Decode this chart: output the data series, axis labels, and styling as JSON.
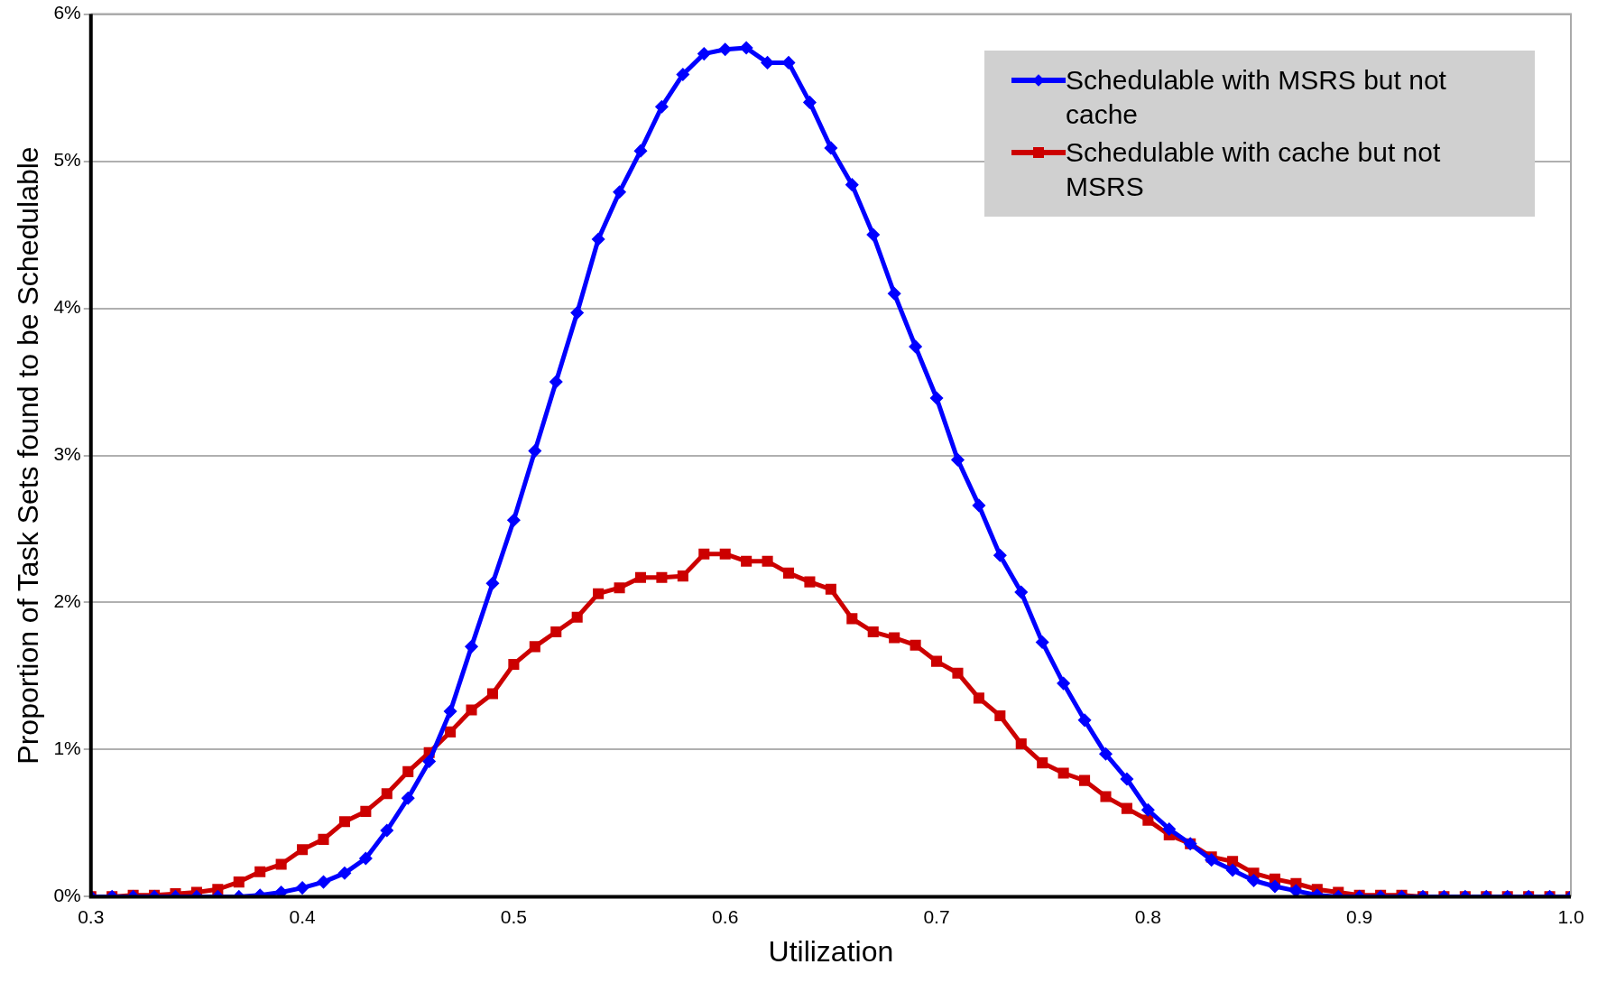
{
  "chart_data": {
    "type": "line",
    "xlabel": "Utilization",
    "ylabel": "Proportion of Task Sets found to be Schedulable",
    "x": [
      0.3,
      0.31,
      0.32,
      0.33,
      0.34,
      0.35,
      0.36,
      0.37,
      0.38,
      0.39,
      0.4,
      0.41,
      0.42,
      0.43,
      0.44,
      0.45,
      0.46,
      0.47,
      0.48,
      0.49,
      0.5,
      0.51,
      0.52,
      0.53,
      0.54,
      0.55,
      0.56,
      0.57,
      0.58,
      0.59,
      0.6,
      0.61,
      0.62,
      0.63,
      0.64,
      0.65,
      0.66,
      0.67,
      0.68,
      0.69,
      0.7,
      0.71,
      0.72,
      0.73,
      0.74,
      0.75,
      0.76,
      0.77,
      0.78,
      0.79,
      0.8,
      0.81,
      0.82,
      0.83,
      0.84,
      0.85,
      0.86,
      0.87,
      0.88,
      0.89,
      0.9,
      0.91,
      0.92,
      0.93,
      0.94,
      0.95,
      0.96,
      0.97,
      0.98,
      0.99,
      1.0
    ],
    "series": [
      {
        "name": "Schedulable with MSRS but not cache",
        "color": "#0000ff",
        "marker": "diamond",
        "values": [
          0,
          0,
          0,
          0,
          0,
          0,
          0,
          0,
          0.01,
          0.03,
          0.06,
          0.1,
          0.16,
          0.26,
          0.45,
          0.67,
          0.92,
          1.26,
          1.7,
          2.13,
          2.56,
          3.03,
          3.5,
          3.97,
          4.47,
          4.79,
          5.07,
          5.37,
          5.59,
          5.73,
          5.76,
          5.77,
          5.67,
          5.67,
          5.4,
          5.09,
          4.84,
          4.5,
          4.1,
          3.74,
          3.39,
          2.97,
          2.66,
          2.32,
          2.07,
          1.73,
          1.45,
          1.2,
          0.97,
          0.8,
          0.59,
          0.46,
          0.36,
          0.25,
          0.18,
          0.11,
          0.07,
          0.04,
          0.01,
          0,
          0,
          0,
          0,
          0,
          0,
          0,
          0,
          0,
          0,
          0,
          0
        ]
      },
      {
        "name": "Schedulable with cache but not MSRS",
        "color": "#cc0000",
        "marker": "square",
        "values": [
          0,
          0,
          0.01,
          0.01,
          0.02,
          0.03,
          0.05,
          0.1,
          0.17,
          0.22,
          0.32,
          0.39,
          0.51,
          0.58,
          0.7,
          0.85,
          0.98,
          1.12,
          1.27,
          1.38,
          1.58,
          1.7,
          1.8,
          1.9,
          2.06,
          2.1,
          2.17,
          2.17,
          2.18,
          2.33,
          2.33,
          2.28,
          2.28,
          2.2,
          2.14,
          2.09,
          1.89,
          1.8,
          1.76,
          1.71,
          1.6,
          1.52,
          1.35,
          1.23,
          1.04,
          0.91,
          0.84,
          0.79,
          0.68,
          0.6,
          0.52,
          0.42,
          0.36,
          0.27,
          0.24,
          0.16,
          0.12,
          0.09,
          0.05,
          0.03,
          0.01,
          0.01,
          0.01,
          0,
          0,
          0,
          0,
          0,
          0,
          0,
          0
        ]
      }
    ],
    "xlim": [
      0.3,
      1.0
    ],
    "xticks": [
      0.3,
      0.4,
      0.5,
      0.6,
      0.7,
      0.8,
      0.9,
      {
        "value": 1,
        "label": "1.0"
      }
    ],
    "ylim": [
      0,
      6
    ],
    "yticks": [
      {
        "value": 0,
        "label": "0%"
      },
      {
        "value": 1,
        "label": "1%"
      },
      {
        "value": 2,
        "label": "2%"
      },
      {
        "value": 3,
        "label": "3%"
      },
      {
        "value": 4,
        "label": "4%"
      },
      {
        "value": 5,
        "label": "5%"
      },
      {
        "value": 6,
        "label": "6%"
      }
    ],
    "grid": "y",
    "legend": "top right"
  }
}
